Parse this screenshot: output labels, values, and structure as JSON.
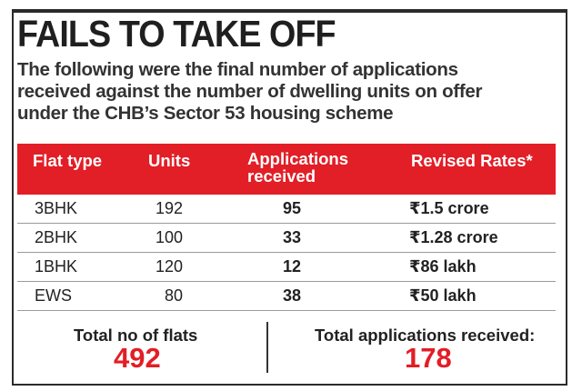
{
  "title": "FAILS TO TAKE OFF",
  "subtitle_lines": [
    "The following were the final number of applications",
    "received against the number of dwelling units on offer",
    "under the CHB’s Sector 53 housing scheme"
  ],
  "colors": {
    "accent": "#e21e26",
    "text": "#222222",
    "border": "#2b2b2b"
  },
  "chart_data": {
    "type": "table",
    "title": "FAILS TO TAKE OFF",
    "columns": [
      "Flat type",
      "Units",
      "Applications received",
      "Revised Rates*"
    ],
    "header_lines": {
      "apps_line1": "Applications",
      "apps_line2": "received"
    },
    "rows": [
      {
        "flat_type": "3BHK",
        "units": "192",
        "applications": "95",
        "rate": "₹1.5 crore"
      },
      {
        "flat_type": "2BHK",
        "units": "100",
        "applications": "33",
        "rate": "₹1.28 crore"
      },
      {
        "flat_type": "1BHK",
        "units": "120",
        "applications": "12",
        "rate": "₹86 lakh"
      },
      {
        "flat_type": "EWS",
        "units": "80",
        "applications": "38",
        "rate": "₹50 lakh"
      }
    ],
    "totals": {
      "flats_label": "Total no of flats",
      "flats_value": "492",
      "apps_label": "Total applications received:",
      "apps_value": "178"
    }
  }
}
